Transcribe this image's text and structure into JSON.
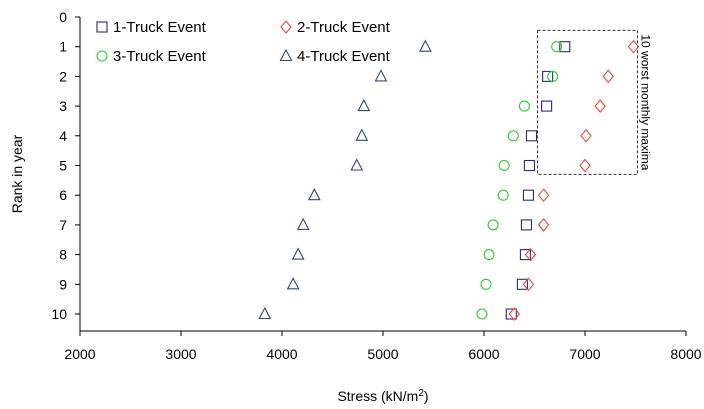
{
  "chart_data": {
    "type": "scatter",
    "xlabel": "Stress (kN/m",
    "xlabel_superscript": "2",
    "xlabel_suffix": ")",
    "ylabel": "Rank in year",
    "xlim": [
      2000,
      8000
    ],
    "ylim": [
      0,
      10
    ],
    "x_ticks": [
      2000,
      3000,
      4000,
      5000,
      6000,
      7000,
      8000
    ],
    "y_ticks": [
      0,
      1,
      2,
      3,
      4,
      5,
      6,
      7,
      8,
      9,
      10
    ],
    "y_inverted": true,
    "grid": false,
    "legend_position": "top-left",
    "series": [
      {
        "name": "1-Truck Event",
        "marker": "square",
        "color": "#2b2b7a",
        "points": [
          [
            6800,
            1
          ],
          [
            6630,
            2
          ],
          [
            6620,
            3
          ],
          [
            6470,
            4
          ],
          [
            6450,
            5
          ],
          [
            6440,
            6
          ],
          [
            6420,
            7
          ],
          [
            6410,
            8
          ],
          [
            6380,
            9
          ],
          [
            6270,
            10
          ]
        ]
      },
      {
        "name": "2-Truck Event",
        "marker": "diamond",
        "color": "#e8483f",
        "points": [
          [
            7480,
            1
          ],
          [
            7230,
            2
          ],
          [
            7150,
            3
          ],
          [
            7010,
            4
          ],
          [
            7000,
            5
          ],
          [
            6590,
            6
          ],
          [
            6590,
            7
          ],
          [
            6460,
            8
          ],
          [
            6440,
            9
          ],
          [
            6300,
            10
          ]
        ]
      },
      {
        "name": "3-Truck Event",
        "marker": "circle",
        "color": "#33cc33",
        "points": [
          [
            6720,
            1
          ],
          [
            6680,
            2
          ],
          [
            6400,
            3
          ],
          [
            6290,
            4
          ],
          [
            6200,
            5
          ],
          [
            6190,
            6
          ],
          [
            6090,
            7
          ],
          [
            6050,
            8
          ],
          [
            6020,
            9
          ],
          [
            5980,
            10
          ]
        ]
      },
      {
        "name": "4-Truck Event",
        "marker": "triangle",
        "color": "#2e4a6e",
        "points": [
          [
            5420,
            1
          ],
          [
            4980,
            2
          ],
          [
            4810,
            3
          ],
          [
            4790,
            4
          ],
          [
            4740,
            5
          ],
          [
            4320,
            6
          ],
          [
            4210,
            7
          ],
          [
            4160,
            8
          ],
          [
            4110,
            9
          ],
          [
            3830,
            10
          ]
        ]
      }
    ],
    "annotation": {
      "text": "10 worst monthly maxima",
      "box_x": [
        6530,
        7520
      ],
      "box_y": [
        0.45,
        5.3
      ]
    }
  }
}
